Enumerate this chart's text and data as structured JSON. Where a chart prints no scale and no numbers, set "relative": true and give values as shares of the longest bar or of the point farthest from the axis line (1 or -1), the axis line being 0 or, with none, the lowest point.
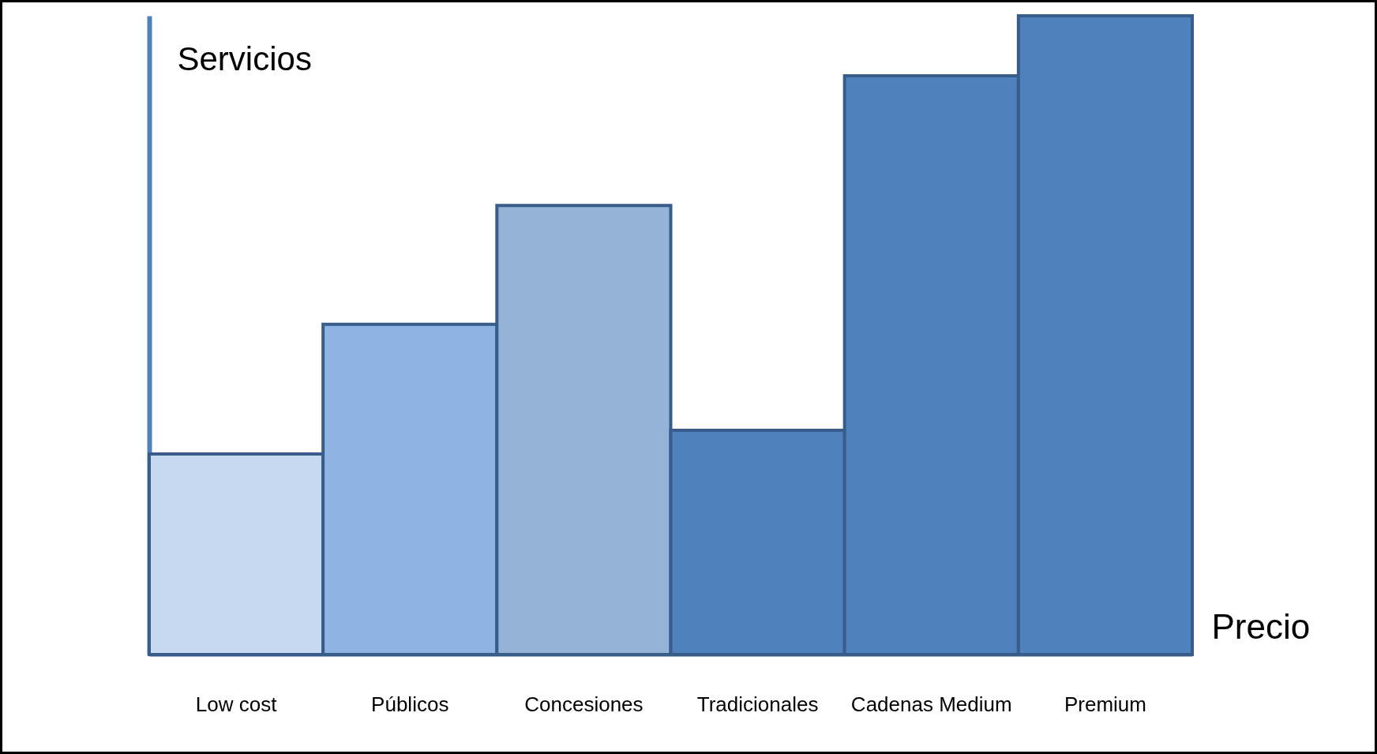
{
  "chart_data": {
    "type": "bar",
    "relative": true,
    "xlabel": "Precio",
    "ylabel": "Servicios",
    "categories": [
      "Low cost",
      "Públicos",
      "Concesiones",
      "Tradicionales",
      "Cadenas Medium",
      "Premium"
    ],
    "values": [
      0.314,
      0.517,
      0.703,
      0.351,
      0.906,
      1
    ],
    "colors": [
      "#c6d9f1",
      "#8eb4e3",
      "#95b3d7",
      "#4f81bd",
      "#4f81bd",
      "#4f81bd"
    ]
  }
}
